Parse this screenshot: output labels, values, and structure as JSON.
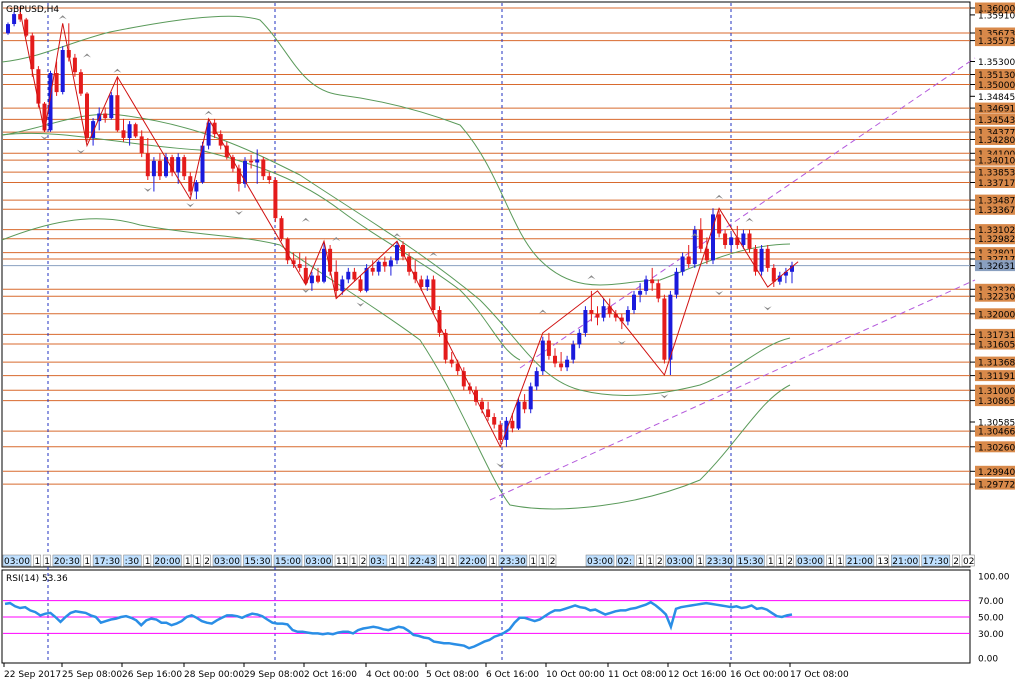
{
  "window": {
    "symbol_label": "GBPUSD,H4",
    "rsi_label": "RSI(14) 53.36"
  },
  "colors": {
    "bull": "#1a1adc",
    "bear": "#e41b1b",
    "level_line": "#d86a2e",
    "ma": "#5a9a5a",
    "channel": "#b45adc",
    "zigzag": "#d01010",
    "rsi_line": "#2a8ee6",
    "rsi_levels": "#ff00ff",
    "tag_fill": "#d8894a"
  },
  "chart_data": {
    "type": "line",
    "price_axis_labels": [
      "1.36000",
      "1.35910",
      "1.35673",
      "1.35573",
      "1.35300",
      "1.35130",
      "1.35000",
      "1.34845",
      "1.34691",
      "1.34543",
      "1.34377",
      "1.34280",
      "1.34100",
      "1.34010",
      "1.33853",
      "1.33717",
      "1.33487",
      "1.33367",
      "1.33102",
      "1.32982",
      "1.32801",
      "1.32717",
      "1.32631",
      "1.32320",
      "1.32230",
      "1.32000",
      "1.31731",
      "1.31605",
      "1.31368",
      "1.31191",
      "1.31000",
      "1.30865",
      "1.30585",
      "1.30466",
      "1.30260",
      "1.29940",
      "1.29772"
    ],
    "support_resistance_levels": [
      1.36,
      1.35673,
      1.35573,
      1.3513,
      1.35,
      1.34691,
      1.34543,
      1.34377,
      1.3428,
      1.341,
      1.3401,
      1.33853,
      1.33717,
      1.33487,
      1.33367,
      1.33102,
      1.32982,
      1.32801,
      1.32717,
      1.3232,
      1.3223,
      1.32,
      1.31731,
      1.31605,
      1.31368,
      1.31191,
      1.31,
      1.30865,
      1.30466,
      1.3026,
      1.2994,
      1.29772
    ],
    "current_price": 1.32631,
    "x_date_labels": [
      "22 Sep 2017",
      "25 Sep 08:00",
      "26 Sep 16:00",
      "28 Sep 00:00",
      "29 Sep 08:00",
      "2 Oct 16:00",
      "4 Oct 00:00",
      "5 Oct 08:00",
      "6 Oct 16:00",
      "10 Oct 00:00",
      "11 Oct 08:00",
      "12 Oct 16:00",
      "16 Oct 00:00",
      "17 Oct 08:00"
    ],
    "session_tags": [
      "03:00",
      "1",
      "1",
      "20:30",
      "1",
      "17:30",
      ":30",
      "1",
      "20:00",
      "1",
      "1",
      "2",
      "03:00",
      "15:30",
      "15:00",
      "03:00",
      "11",
      "1",
      "2",
      "03:",
      "1",
      "1",
      "22:43",
      "1",
      "1",
      "22:00",
      "1",
      "23:30",
      "1",
      "1",
      "2",
      "03:00",
      "02:",
      "1",
      "1",
      "2",
      "03:00",
      "1",
      "23:30",
      "15:30",
      "1",
      "1",
      "2",
      "03:00",
      "1",
      "1",
      "21:00",
      "13",
      "21:00",
      "17:30",
      "2",
      "02"
    ],
    "rsi": {
      "name": "RSI(14)",
      "value": 53.36,
      "levels": [
        70,
        50,
        30
      ],
      "axis_labels": [
        "100.00",
        "70.00",
        "50.00",
        "30.00",
        "0.00"
      ],
      "values": [
        66,
        67,
        63,
        61,
        62,
        58,
        56,
        52,
        54,
        55,
        50,
        44,
        50,
        55,
        57,
        56,
        55,
        52,
        50,
        43,
        45,
        47,
        48,
        50,
        51,
        49,
        46,
        40,
        46,
        48,
        47,
        43,
        43,
        40,
        42,
        45,
        50,
        52,
        49,
        45,
        43,
        42,
        46,
        49,
        52,
        52,
        51,
        49,
        52,
        54,
        53,
        51,
        47,
        43,
        42,
        42,
        41,
        34,
        32,
        32,
        31,
        30,
        30,
        29,
        30,
        29,
        31,
        32,
        32,
        30,
        34,
        36,
        37,
        38,
        37,
        35,
        34,
        36,
        38,
        37,
        33,
        28,
        27,
        25,
        24,
        20,
        19,
        18,
        18,
        17,
        16,
        15,
        12,
        14,
        17,
        20,
        22,
        26,
        28,
        31,
        35,
        43,
        49,
        49,
        47,
        45,
        47,
        51,
        55,
        58,
        58,
        60,
        62,
        64,
        62,
        61,
        58,
        59,
        56,
        53,
        55,
        57,
        58,
        58,
        60,
        61,
        63,
        65,
        68,
        64,
        59,
        53,
        38,
        60,
        62,
        63,
        64,
        65,
        66,
        67,
        66,
        65,
        64,
        63,
        62,
        63,
        61,
        62,
        64,
        60,
        61,
        59,
        55,
        51,
        50,
        52,
        53
      ]
    },
    "candles_ohlc": [
      [
        1.3567,
        1.3581,
        1.3565,
        1.3579
      ],
      [
        1.3579,
        1.3595,
        1.3576,
        1.3592
      ],
      [
        1.3592,
        1.3602,
        1.3582,
        1.3585
      ],
      [
        1.3585,
        1.3587,
        1.3562,
        1.3564
      ],
      [
        1.3564,
        1.3568,
        1.351,
        1.352
      ],
      [
        1.352,
        1.3524,
        1.347,
        1.3475
      ],
      [
        1.3475,
        1.3477,
        1.3438,
        1.344
      ],
      [
        1.344,
        1.3518,
        1.3438,
        1.3515
      ],
      [
        1.3515,
        1.353,
        1.3485,
        1.349
      ],
      [
        1.349,
        1.355,
        1.3487,
        1.3545
      ],
      [
        1.3545,
        1.358,
        1.353,
        1.3535
      ],
      [
        1.3535,
        1.354,
        1.351,
        1.3516
      ],
      [
        1.3516,
        1.352,
        1.3485,
        1.3488
      ],
      [
        1.3488,
        1.349,
        1.3425,
        1.343
      ],
      [
        1.343,
        1.3456,
        1.342,
        1.3452
      ],
      [
        1.3452,
        1.347,
        1.344,
        1.3462
      ],
      [
        1.3462,
        1.347,
        1.345,
        1.3456
      ],
      [
        1.3456,
        1.349,
        1.3454,
        1.3486
      ],
      [
        1.3486,
        1.351,
        1.3438,
        1.344
      ],
      [
        1.344,
        1.3455,
        1.3425,
        1.343
      ],
      [
        1.343,
        1.3452,
        1.342,
        1.3448
      ],
      [
        1.3448,
        1.345,
        1.343,
        1.3432
      ],
      [
        1.3432,
        1.344,
        1.3405,
        1.341
      ],
      [
        1.341,
        1.343,
        1.3375,
        1.338
      ],
      [
        1.338,
        1.3405,
        1.336,
        1.34
      ],
      [
        1.34,
        1.341,
        1.3375,
        1.338
      ],
      [
        1.338,
        1.341,
        1.3378,
        1.3405
      ],
      [
        1.3405,
        1.3408,
        1.338,
        1.3385
      ],
      [
        1.3385,
        1.341,
        1.337,
        1.3405
      ],
      [
        1.3405,
        1.3408,
        1.3375,
        1.338
      ],
      [
        1.338,
        1.3385,
        1.3355,
        1.336
      ],
      [
        1.336,
        1.3375,
        1.335,
        1.3372
      ],
      [
        1.3372,
        1.3425,
        1.337,
        1.342
      ],
      [
        1.342,
        1.3455,
        1.3415,
        1.345
      ],
      [
        1.345,
        1.3455,
        1.343,
        1.3435
      ],
      [
        1.3435,
        1.344,
        1.3415,
        1.342
      ],
      [
        1.342,
        1.3425,
        1.3402,
        1.3405
      ],
      [
        1.3405,
        1.3408,
        1.3385,
        1.339
      ],
      [
        1.339,
        1.3395,
        1.336,
        1.337
      ],
      [
        1.337,
        1.3405,
        1.3365,
        1.34
      ],
      [
        1.34,
        1.3408,
        1.339,
        1.3398
      ],
      [
        1.3398,
        1.3415,
        1.337,
        1.3402
      ],
      [
        1.3402,
        1.3405,
        1.3375,
        1.338
      ],
      [
        1.338,
        1.3385,
        1.337,
        1.3375
      ],
      [
        1.3375,
        1.3378,
        1.332,
        1.3325
      ],
      [
        1.3325,
        1.3328,
        1.3295,
        1.3298
      ],
      [
        1.3298,
        1.33,
        1.3265,
        1.327
      ],
      [
        1.327,
        1.328,
        1.326,
        1.3265
      ],
      [
        1.3265,
        1.328,
        1.3255,
        1.326
      ],
      [
        1.326,
        1.3275,
        1.3238,
        1.324
      ],
      [
        1.324,
        1.3255,
        1.323,
        1.325
      ],
      [
        1.325,
        1.326,
        1.324,
        1.3242
      ],
      [
        1.3242,
        1.3295,
        1.324,
        1.3285
      ],
      [
        1.3285,
        1.329,
        1.325,
        1.3255
      ],
      [
        1.3255,
        1.327,
        1.322,
        1.323
      ],
      [
        1.323,
        1.325,
        1.3225,
        1.3245
      ],
      [
        1.3245,
        1.326,
        1.324,
        1.3255
      ],
      [
        1.3255,
        1.326,
        1.3242,
        1.3245
      ],
      [
        1.3245,
        1.325,
        1.3228,
        1.323
      ],
      [
        1.323,
        1.3265,
        1.3228,
        1.326
      ],
      [
        1.326,
        1.327,
        1.325,
        1.3255
      ],
      [
        1.3255,
        1.327,
        1.325,
        1.3268
      ],
      [
        1.3268,
        1.3275,
        1.3255,
        1.3262
      ],
      [
        1.3262,
        1.3275,
        1.325,
        1.327
      ],
      [
        1.327,
        1.3295,
        1.3265,
        1.329
      ],
      [
        1.329,
        1.3295,
        1.327,
        1.3275
      ],
      [
        1.3275,
        1.328,
        1.325,
        1.3255
      ],
      [
        1.3255,
        1.327,
        1.324,
        1.3245
      ],
      [
        1.3245,
        1.325,
        1.323,
        1.3235
      ],
      [
        1.3235,
        1.325,
        1.323,
        1.3245
      ],
      [
        1.3245,
        1.325,
        1.32,
        1.3205
      ],
      [
        1.3205,
        1.321,
        1.317,
        1.3175
      ],
      [
        1.3175,
        1.318,
        1.3135,
        1.314
      ],
      [
        1.314,
        1.315,
        1.313,
        1.3135
      ],
      [
        1.3135,
        1.314,
        1.312,
        1.3125
      ],
      [
        1.3125,
        1.313,
        1.31,
        1.3105
      ],
      [
        1.3105,
        1.311,
        1.3095,
        1.31
      ],
      [
        1.31,
        1.3105,
        1.308,
        1.3085
      ],
      [
        1.3085,
        1.309,
        1.307,
        1.3075
      ],
      [
        1.3075,
        1.3085,
        1.306,
        1.3065
      ],
      [
        1.3065,
        1.307,
        1.305,
        1.3055
      ],
      [
        1.3055,
        1.306,
        1.303,
        1.3035
      ],
      [
        1.3035,
        1.3065,
        1.3026,
        1.306
      ],
      [
        1.306,
        1.307,
        1.3045,
        1.305
      ],
      [
        1.305,
        1.309,
        1.3048,
        1.3085
      ],
      [
        1.3085,
        1.3095,
        1.307,
        1.3075
      ],
      [
        1.3075,
        1.311,
        1.307,
        1.3105
      ],
      [
        1.3105,
        1.313,
        1.31,
        1.3125
      ],
      [
        1.3125,
        1.317,
        1.312,
        1.3165
      ],
      [
        1.3165,
        1.3175,
        1.314,
        1.3145
      ],
      [
        1.3145,
        1.3155,
        1.313,
        1.3135
      ],
      [
        1.3135,
        1.315,
        1.3125,
        1.313
      ],
      [
        1.313,
        1.3145,
        1.3125,
        1.314
      ],
      [
        1.314,
        1.3165,
        1.3135,
        1.316
      ],
      [
        1.316,
        1.318,
        1.3155,
        1.3175
      ],
      [
        1.3175,
        1.321,
        1.317,
        1.3205
      ],
      [
        1.3205,
        1.323,
        1.319,
        1.32
      ],
      [
        1.32,
        1.321,
        1.3185,
        1.3195
      ],
      [
        1.3195,
        1.322,
        1.319,
        1.321
      ],
      [
        1.321,
        1.322,
        1.3195,
        1.32
      ],
      [
        1.32,
        1.3205,
        1.319,
        1.3195
      ],
      [
        1.3195,
        1.32,
        1.318,
        1.319
      ],
      [
        1.319,
        1.321,
        1.3185,
        1.3205
      ],
      [
        1.3205,
        1.323,
        1.32,
        1.3225
      ],
      [
        1.3225,
        1.324,
        1.3215,
        1.323
      ],
      [
        1.323,
        1.325,
        1.3225,
        1.3245
      ],
      [
        1.3245,
        1.326,
        1.323,
        1.324
      ],
      [
        1.324,
        1.3245,
        1.3215,
        1.322
      ],
      [
        1.322,
        1.3225,
        1.3135,
        1.314
      ],
      [
        1.314,
        1.323,
        1.312,
        1.3225
      ],
      [
        1.3225,
        1.326,
        1.322,
        1.3255
      ],
      [
        1.3255,
        1.328,
        1.325,
        1.3275
      ],
      [
        1.3275,
        1.329,
        1.326,
        1.3265
      ],
      [
        1.3265,
        1.3315,
        1.326,
        1.331
      ],
      [
        1.331,
        1.3325,
        1.328,
        1.3285
      ],
      [
        1.3285,
        1.33,
        1.3265,
        1.327
      ],
      [
        1.327,
        1.3338,
        1.3265,
        1.333
      ],
      [
        1.333,
        1.3335,
        1.33,
        1.3305
      ],
      [
        1.3305,
        1.331,
        1.3285,
        1.329
      ],
      [
        1.329,
        1.3305,
        1.328,
        1.33
      ],
      [
        1.33,
        1.3315,
        1.3285,
        1.329
      ],
      [
        1.329,
        1.331,
        1.3285,
        1.3305
      ],
      [
        1.3305,
        1.331,
        1.328,
        1.3285
      ],
      [
        1.3285,
        1.329,
        1.325,
        1.3255
      ],
      [
        1.3255,
        1.329,
        1.325,
        1.3285
      ],
      [
        1.3285,
        1.329,
        1.3255,
        1.326
      ],
      [
        1.326,
        1.3265,
        1.3235,
        1.3242
      ],
      [
        1.3242,
        1.3255,
        1.3238,
        1.325
      ],
      [
        1.325,
        1.326,
        1.324,
        1.3255
      ],
      [
        1.3255,
        1.3268,
        1.324,
        1.32631
      ]
    ]
  }
}
